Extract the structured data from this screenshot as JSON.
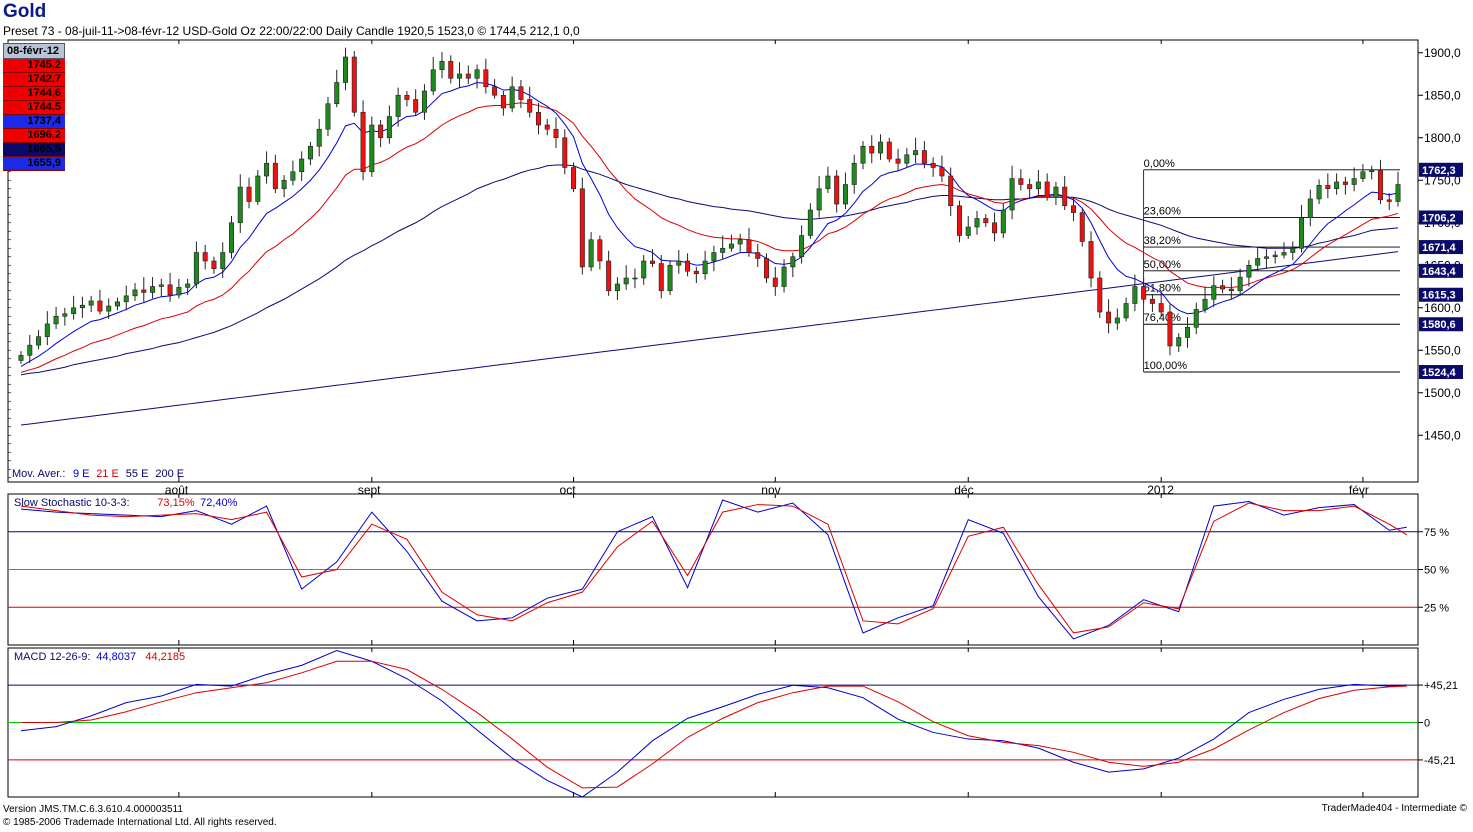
{
  "header": {
    "title": "Gold",
    "subtitle": "Preset 73 -  08-juil-11->08-févr-12 USD-Gold Oz 22:00/22:00 Daily Candle 1920,5 1523,0 ©   1744,5 212,1 0,0"
  },
  "info_box": {
    "date": "08-févr-12",
    "values": [
      {
        "text": "1745,2",
        "bg": "#ee0000"
      },
      {
        "text": "1742,7",
        "bg": "#ee0000"
      },
      {
        "text": "1744,6",
        "bg": "#ee0000"
      },
      {
        "text": "1744,5",
        "bg": "#ee0000"
      },
      {
        "text": "1737,4",
        "bg": "#1a2ae8"
      },
      {
        "text": "1696,2",
        "bg": "#ee0000"
      },
      {
        "text": "1665,5",
        "bg": "#0a0a6a"
      },
      {
        "text": "1655,9",
        "bg": "#1a2ae8"
      }
    ]
  },
  "footer": {
    "version": "Version  JMS.TM.C.6.3.610.4.000003511",
    "copyright": "© 1985-2006 Trademade International Ltd.  All rights reserved.",
    "brand": "TraderMade404 - Intermediate ©"
  },
  "chart_data": [
    {
      "type": "candlestick",
      "panel": "price",
      "x_labels": [
        "août",
        "sept",
        "oct",
        "nov",
        "déc",
        "2012",
        "févr"
      ],
      "y_ticks": [
        1450,
        1500,
        1550,
        1600,
        1650,
        1700,
        1750,
        1800,
        1850,
        1900
      ],
      "y_tick_labels": [
        "1450,0",
        "1500,0",
        "1550,0",
        "1600,0",
        "1650,0",
        "1700,0",
        "1750,0",
        "1800,0",
        "1850,0",
        "1900,0"
      ],
      "ylim": [
        1395,
        1915
      ],
      "legend": {
        "prefix": "Mov. Aver.:",
        "items": [
          {
            "text": "9 E",
            "color": "#0000cc"
          },
          {
            "text": "21 E",
            "color": "#dd0000"
          },
          {
            "text": "55 E",
            "color": "#000066"
          },
          {
            "text": "200 E",
            "color": "#000066"
          }
        ]
      },
      "closes": [
        1544,
        1556,
        1566,
        1581,
        1590,
        1593,
        1600,
        1603,
        1608,
        1596,
        1602,
        1607,
        1614,
        1621,
        1618,
        1625,
        1627,
        1615,
        1624,
        1628,
        1665,
        1655,
        1646,
        1665,
        1700,
        1742,
        1725,
        1755,
        1770,
        1740,
        1750,
        1760,
        1775,
        1790,
        1810,
        1840,
        1865,
        1895,
        1830,
        1760,
        1815,
        1800,
        1825,
        1850,
        1845,
        1830,
        1855,
        1880,
        1890,
        1870,
        1875,
        1870,
        1880,
        1860,
        1850,
        1835,
        1860,
        1845,
        1830,
        1815,
        1810,
        1800,
        1765,
        1740,
        1648,
        1680,
        1655,
        1620,
        1628,
        1635,
        1635,
        1655,
        1652,
        1620,
        1650,
        1655,
        1643,
        1640,
        1655,
        1665,
        1670,
        1675,
        1680,
        1665,
        1658,
        1635,
        1625,
        1648,
        1660,
        1685,
        1715,
        1740,
        1755,
        1722,
        1745,
        1770,
        1790,
        1782,
        1795,
        1775,
        1770,
        1780,
        1785,
        1770,
        1765,
        1755,
        1720,
        1685,
        1695,
        1705,
        1700,
        1688,
        1715,
        1752,
        1745,
        1740,
        1748,
        1730,
        1742,
        1720,
        1712,
        1678,
        1635,
        1595,
        1582,
        1588,
        1605,
        1625,
        1610,
        1605,
        1595,
        1555,
        1565,
        1577,
        1598,
        1610,
        1626,
        1622,
        1620,
        1636,
        1650,
        1658,
        1660,
        1662,
        1665,
        1670,
        1706,
        1728,
        1744,
        1740,
        1748,
        1745,
        1752,
        1760,
        1762,
        1727,
        1725,
        1745
      ],
      "ema_9": [
        1531,
        1537,
        1543,
        1550,
        1558,
        1565,
        1572,
        1578,
        1584,
        1586,
        1590,
        1594,
        1598,
        1603,
        1606,
        1610,
        1613,
        1614,
        1616,
        1618,
        1628,
        1634,
        1636,
        1642,
        1654,
        1671,
        1682,
        1697,
        1711,
        1717,
        1724,
        1731,
        1740,
        1750,
        1762,
        1777,
        1794,
        1814,
        1817,
        1806,
        1808,
        1807,
        1811,
        1819,
        1825,
        1826,
        1832,
        1842,
        1852,
        1855,
        1859,
        1861,
        1865,
        1864,
        1861,
        1856,
        1857,
        1855,
        1850,
        1843,
        1837,
        1829,
        1816,
        1801,
        1770,
        1752,
        1733,
        1710,
        1694,
        1682,
        1672,
        1669,
        1665,
        1656,
        1655,
        1655,
        1653,
        1650,
        1651,
        1654,
        1657,
        1661,
        1665,
        1665,
        1664,
        1658,
        1652,
        1651,
        1653,
        1660,
        1671,
        1685,
        1699,
        1703,
        1711,
        1723,
        1737,
        1745,
        1755,
        1759,
        1761,
        1765,
        1769,
        1769,
        1768,
        1766,
        1756,
        1742,
        1732,
        1727,
        1721,
        1715,
        1714,
        1722,
        1726,
        1729,
        1732,
        1732,
        1734,
        1731,
        1727,
        1717,
        1700,
        1679,
        1659,
        1645,
        1637,
        1634,
        1629,
        1624,
        1618,
        1605,
        1597,
        1593,
        1594,
        1597,
        1603,
        1607,
        1610,
        1615,
        1622,
        1629,
        1636,
        1641,
        1646,
        1651,
        1662,
        1675,
        1688,
        1699,
        1706,
        1714,
        1721,
        1729,
        1736,
        1735,
        1733,
        1735
      ],
      "ema_21": [
        1524,
        1527,
        1530,
        1535,
        1540,
        1544,
        1549,
        1553,
        1558,
        1561,
        1564,
        1568,
        1572,
        1576,
        1579,
        1583,
        1587,
        1589,
        1592,
        1595,
        1602,
        1607,
        1610,
        1615,
        1623,
        1634,
        1643,
        1655,
        1666,
        1672,
        1680,
        1687,
        1696,
        1705,
        1715,
        1728,
        1741,
        1756,
        1763,
        1763,
        1768,
        1771,
        1776,
        1783,
        1789,
        1793,
        1799,
        1807,
        1815,
        1821,
        1826,
        1830,
        1835,
        1837,
        1838,
        1838,
        1840,
        1841,
        1840,
        1838,
        1835,
        1832,
        1825,
        1817,
        1802,
        1790,
        1777,
        1762,
        1750,
        1738,
        1728,
        1721,
        1714,
        1706,
        1701,
        1697,
        1692,
        1688,
        1685,
        1683,
        1682,
        1681,
        1681,
        1680,
        1678,
        1674,
        1669,
        1667,
        1667,
        1668,
        1673,
        1679,
        1687,
        1690,
        1695,
        1702,
        1710,
        1716,
        1723,
        1728,
        1731,
        1735,
        1740,
        1742,
        1744,
        1745,
        1743,
        1738,
        1734,
        1731,
        1728,
        1724,
        1723,
        1726,
        1728,
        1729,
        1731,
        1731,
        1732,
        1731,
        1729,
        1724,
        1716,
        1705,
        1693,
        1684,
        1676,
        1671,
        1665,
        1659,
        1654,
        1643,
        1636,
        1629,
        1626,
        1624,
        1624,
        1624,
        1624,
        1625,
        1628,
        1632,
        1635,
        1638,
        1641,
        1645,
        1651,
        1659,
        1667,
        1674,
        1680,
        1686,
        1692,
        1698,
        1704,
        1706,
        1708,
        1711
      ],
      "ema_55": [
        1521,
        1523,
        1524,
        1526,
        1528,
        1530,
        1533,
        1535,
        1537,
        1539,
        1541,
        1543,
        1546,
        1548,
        1550,
        1552,
        1555,
        1557,
        1559,
        1562,
        1565,
        1568,
        1571,
        1575,
        1579,
        1584,
        1589,
        1594,
        1600,
        1605,
        1610,
        1616,
        1622,
        1628,
        1634,
        1641,
        1648,
        1656,
        1662,
        1667,
        1673,
        1678,
        1684,
        1690,
        1695,
        1700,
        1706,
        1713,
        1719,
        1724,
        1729,
        1734,
        1740,
        1744,
        1748,
        1751,
        1755,
        1759,
        1762,
        1764,
        1767,
        1768,
        1768,
        1767,
        1763,
        1760,
        1757,
        1753,
        1749,
        1745,
        1742,
        1739,
        1736,
        1733,
        1730,
        1728,
        1725,
        1723,
        1721,
        1719,
        1718,
        1716,
        1715,
        1714,
        1712,
        1710,
        1708,
        1706,
        1705,
        1704,
        1704,
        1705,
        1706,
        1707,
        1708,
        1710,
        1712,
        1715,
        1718,
        1720,
        1722,
        1724,
        1727,
        1729,
        1731,
        1732,
        1732,
        1731,
        1730,
        1729,
        1728,
        1727,
        1727,
        1728,
        1728,
        1729,
        1730,
        1730,
        1730,
        1730,
        1730,
        1728,
        1725,
        1721,
        1716,
        1712,
        1709,
        1706,
        1703,
        1700,
        1697,
        1693,
        1689,
        1685,
        1682,
        1680,
        1678,
        1676,
        1674,
        1673,
        1672,
        1671,
        1670,
        1670,
        1670,
        1670,
        1671,
        1673,
        1676,
        1678,
        1681,
        1683,
        1685,
        1688,
        1691,
        1692,
        1693,
        1694
      ],
      "ema_200_start": 1462,
      "ema_200_end": 1666,
      "fibonacci": {
        "high": 1762.3,
        "low": 1524.4,
        "levels": [
          {
            "label": "0,00%",
            "value": 1762.3
          },
          {
            "label": "23,60%",
            "value": 1706.2
          },
          {
            "label": "38,20%",
            "value": 1671.4
          },
          {
            "label": "50,00%",
            "value": 1643.4
          },
          {
            "label": "61,80%",
            "value": 1615.3
          },
          {
            "label": "76,40%",
            "value": 1580.6
          },
          {
            "label": "100,00%",
            "value": 1524.4
          }
        ]
      },
      "price_tags": [
        {
          "text": "1762,3",
          "value": 1762.3
        },
        {
          "text": "1706,2",
          "value": 1706.2
        },
        {
          "text": "1671,4",
          "value": 1671.4
        },
        {
          "text": "1643,4",
          "value": 1643.4
        },
        {
          "text": "1615,3",
          "value": 1615.3
        },
        {
          "text": "1580,6",
          "value": 1580.6
        },
        {
          "text": "1524,4",
          "value": 1524.4
        }
      ]
    },
    {
      "type": "line",
      "panel": "stochastic",
      "title": "Slow Stochastic 10-3-3:",
      "title_values": [
        {
          "text": "73,15%",
          "color": "#dd0000"
        },
        {
          "text": "72,40%",
          "color": "#0000cc"
        }
      ],
      "ylim": [
        0,
        100
      ],
      "levels": [
        {
          "value": 75,
          "label": "75 %",
          "color": "#000088"
        },
        {
          "value": 50,
          "label": "50 %",
          "color": "#00cc00"
        },
        {
          "value": 25,
          "label": "25 %",
          "color": "#dd0000"
        }
      ],
      "series": [
        {
          "color": "#0000cc",
          "x": [
            0,
            4,
            8,
            12,
            16,
            20,
            24,
            28,
            32,
            36,
            40,
            44,
            48,
            52,
            56,
            60,
            64,
            68,
            72,
            76,
            80,
            84,
            88,
            92,
            96,
            100,
            104,
            108,
            112,
            116,
            120,
            124,
            128,
            132,
            136,
            140,
            144,
            148,
            152,
            156,
            158
          ],
          "values": [
            90,
            88,
            87,
            86,
            85,
            89,
            80,
            92,
            37,
            55,
            88,
            62,
            29,
            16,
            18,
            31,
            37,
            75,
            85,
            38,
            96,
            88,
            94,
            73,
            8,
            18,
            26,
            83,
            74,
            32,
            4,
            13,
            30,
            22,
            92,
            95,
            86,
            91,
            93,
            76,
            78
          ]
        },
        {
          "color": "#dd0000",
          "x": [
            0,
            4,
            8,
            12,
            16,
            20,
            24,
            28,
            32,
            36,
            40,
            44,
            48,
            52,
            56,
            60,
            64,
            68,
            72,
            76,
            80,
            84,
            88,
            92,
            96,
            100,
            104,
            108,
            112,
            116,
            120,
            124,
            128,
            132,
            136,
            140,
            144,
            148,
            152,
            156,
            158
          ],
          "values": [
            92,
            89,
            86,
            85,
            86,
            87,
            83,
            88,
            45,
            50,
            80,
            70,
            35,
            20,
            16,
            28,
            35,
            65,
            82,
            46,
            88,
            93,
            92,
            80,
            16,
            14,
            24,
            72,
            78,
            40,
            8,
            12,
            28,
            24,
            82,
            94,
            89,
            89,
            92,
            80,
            73
          ]
        }
      ]
    },
    {
      "type": "line",
      "panel": "macd",
      "title": "MACD 12-26-9:",
      "title_values": [
        {
          "text": "44,8037",
          "color": "#0000cc"
        },
        {
          "text": "44,2185",
          "color": "#dd0000"
        }
      ],
      "ylim": [
        -90,
        90
      ],
      "levels": [
        {
          "value": 45.21,
          "label": "+45,21",
          "color": "#000088"
        },
        {
          "value": 0,
          "label": "0",
          "color": "#00cc00"
        },
        {
          "value": -45.21,
          "label": "-45,21",
          "color": "#dd0000"
        }
      ],
      "series": [
        {
          "color": "#0000cc",
          "x": [
            0,
            4,
            8,
            12,
            16,
            20,
            24,
            28,
            32,
            36,
            40,
            44,
            48,
            52,
            56,
            60,
            64,
            68,
            72,
            76,
            80,
            84,
            88,
            92,
            96,
            100,
            104,
            108,
            112,
            116,
            120,
            124,
            128,
            132,
            136,
            140,
            144,
            148,
            152,
            156,
            158
          ],
          "values": [
            -10,
            -5,
            8,
            24,
            32,
            46,
            44,
            58,
            69,
            87,
            74,
            53,
            26,
            -9,
            -43,
            -70,
            -90,
            -60,
            -22,
            5,
            19,
            34,
            45,
            42,
            30,
            4,
            -12,
            -20,
            -22,
            -31,
            -48,
            -60,
            -56,
            -43,
            -20,
            12,
            28,
            40,
            46,
            44,
            45
          ]
        },
        {
          "color": "#dd0000",
          "x": [
            0,
            4,
            8,
            12,
            16,
            20,
            24,
            28,
            32,
            36,
            40,
            44,
            48,
            52,
            56,
            60,
            64,
            68,
            72,
            76,
            80,
            84,
            88,
            92,
            96,
            100,
            104,
            108,
            112,
            116,
            120,
            124,
            128,
            132,
            136,
            140,
            144,
            148,
            152,
            156,
            158
          ],
          "values": [
            0,
            0,
            3,
            13,
            25,
            36,
            42,
            48,
            60,
            74,
            74,
            64,
            40,
            12,
            -20,
            -54,
            -79,
            -78,
            -50,
            -18,
            5,
            24,
            36,
            44,
            44,
            25,
            1,
            -16,
            -24,
            -28,
            -36,
            -48,
            -53,
            -48,
            -32,
            -9,
            12,
            29,
            39,
            43,
            44
          ]
        }
      ]
    }
  ]
}
